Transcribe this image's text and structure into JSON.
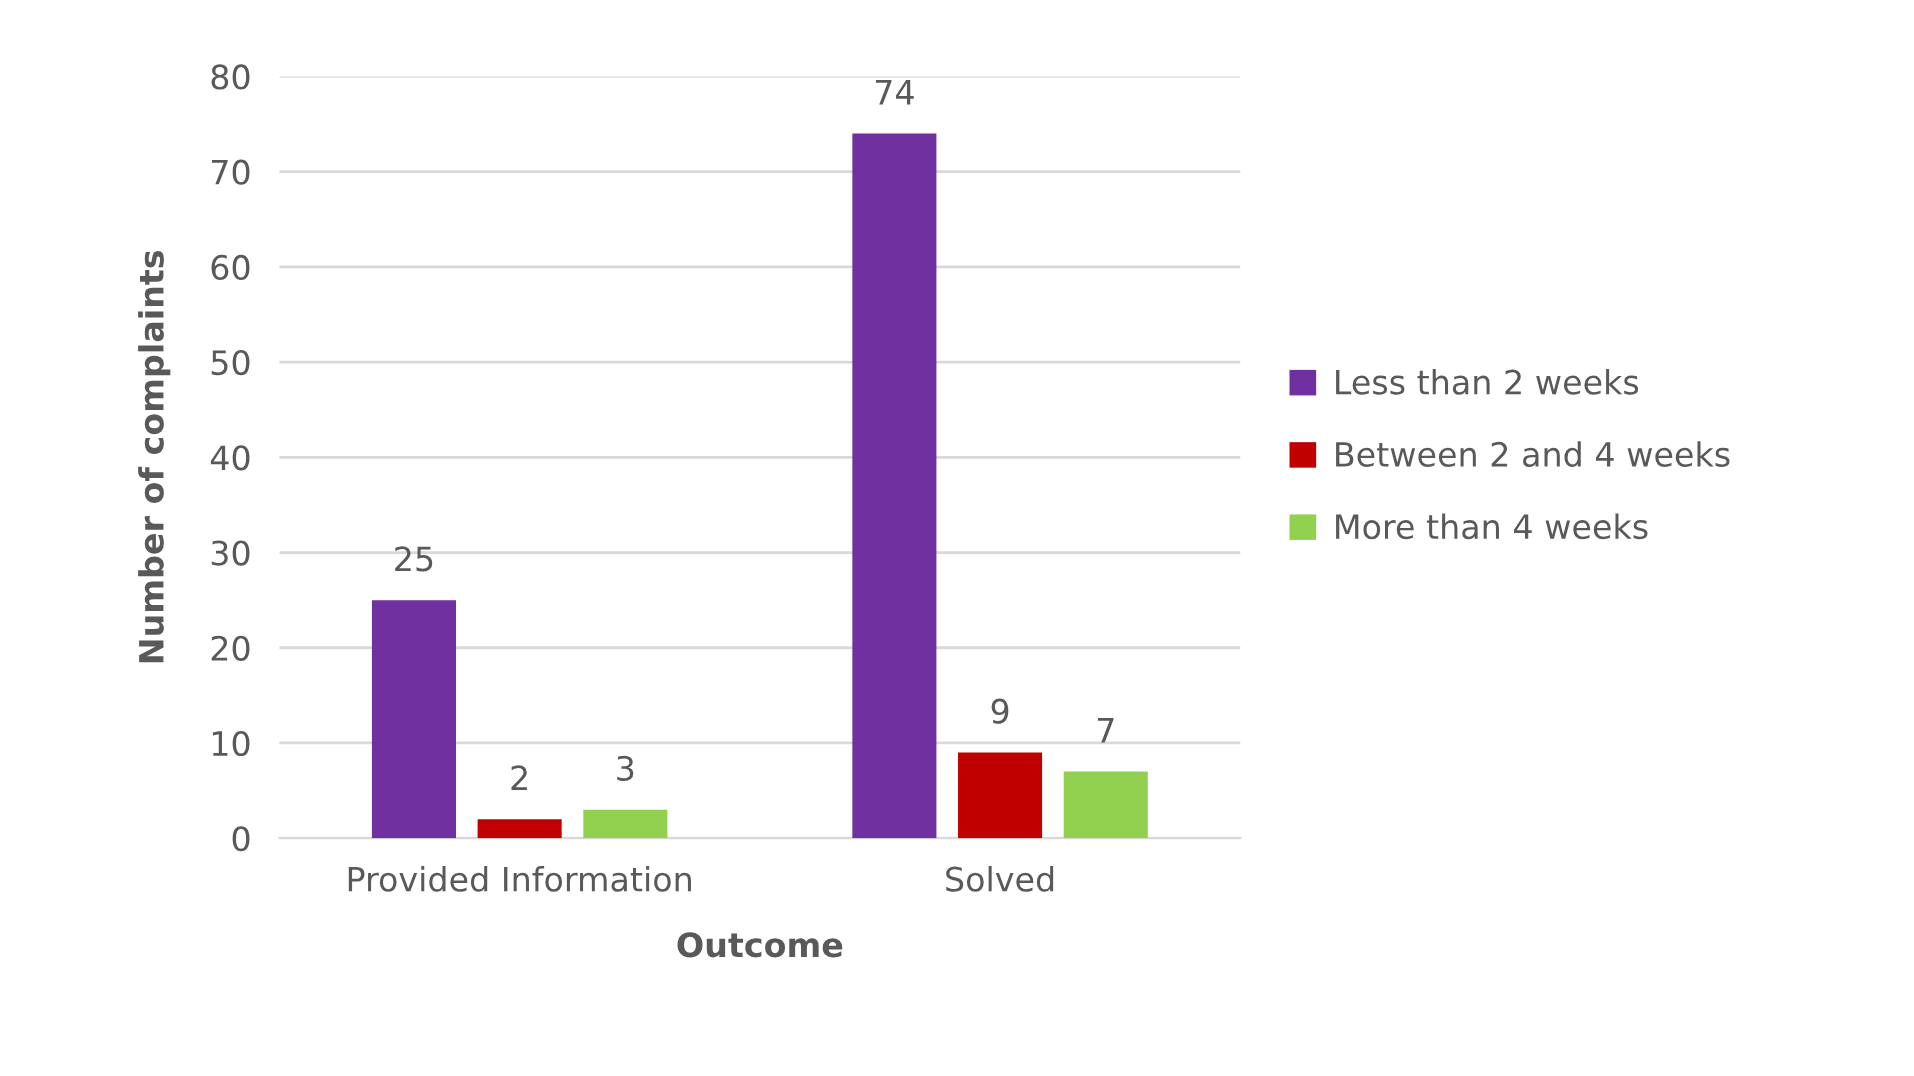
{
  "chart_data": {
    "type": "bar",
    "xlabel": "Outcome",
    "ylabel": "Number of complaints",
    "categories": [
      "Provided Information",
      "Solved"
    ],
    "series": [
      {
        "name": "Less than 2 weeks",
        "color": "#7030a0",
        "values": [
          25,
          74
        ]
      },
      {
        "name": "Between 2 and 4 weeks",
        "color": "#c00000",
        "values": [
          2,
          9
        ]
      },
      {
        "name": "More than 4 weeks",
        "color": "#92d050",
        "values": [
          3,
          7
        ]
      }
    ],
    "ylim": [
      0,
      80
    ],
    "yticks": [
      0,
      10,
      20,
      30,
      40,
      50,
      60,
      70,
      80
    ],
    "grid": "y",
    "legend": "right",
    "data_labels": true
  }
}
